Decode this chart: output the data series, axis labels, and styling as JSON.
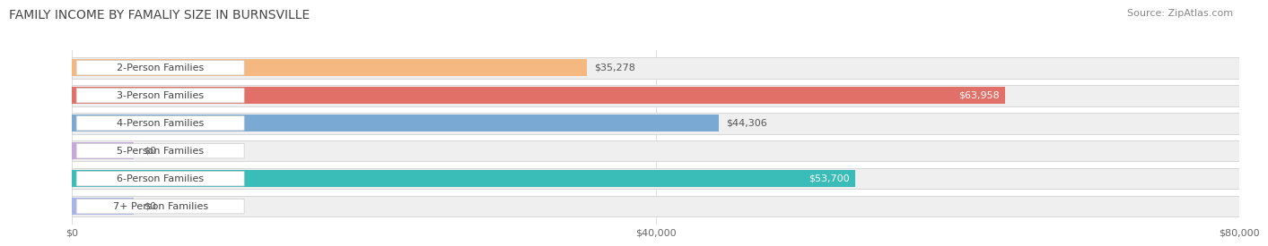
{
  "title": "FAMILY INCOME BY FAMALIY SIZE IN BURNSVILLE",
  "source": "Source: ZipAtlas.com",
  "categories": [
    "2-Person Families",
    "3-Person Families",
    "4-Person Families",
    "5-Person Families",
    "6-Person Families",
    "7+ Person Families"
  ],
  "values": [
    35278,
    63958,
    44306,
    0,
    53700,
    0
  ],
  "bar_colors": [
    "#F5B880",
    "#E07068",
    "#7AAAD4",
    "#C8A8D8",
    "#3ABCB8",
    "#A8B4E8"
  ],
  "bar_bg_color": "#EFEFEF",
  "bar_outline_color": "#CCCCCC",
  "xlim": [
    0,
    80000
  ],
  "xticks": [
    0,
    40000,
    80000
  ],
  "xtick_labels": [
    "$0",
    "$40,000",
    "$80,000"
  ],
  "value_labels": [
    "$35,278",
    "$63,958",
    "$44,306",
    "$0",
    "$53,700",
    "$0"
  ],
  "value_inside": [
    false,
    true,
    false,
    false,
    true,
    false
  ],
  "title_fontsize": 10,
  "source_fontsize": 8,
  "bar_label_fontsize": 8,
  "value_fontsize": 8,
  "tick_fontsize": 8,
  "background_color": "#FFFFFF",
  "grid_color": "#DDDDDD",
  "stub_values": [
    5500,
    5500
  ]
}
